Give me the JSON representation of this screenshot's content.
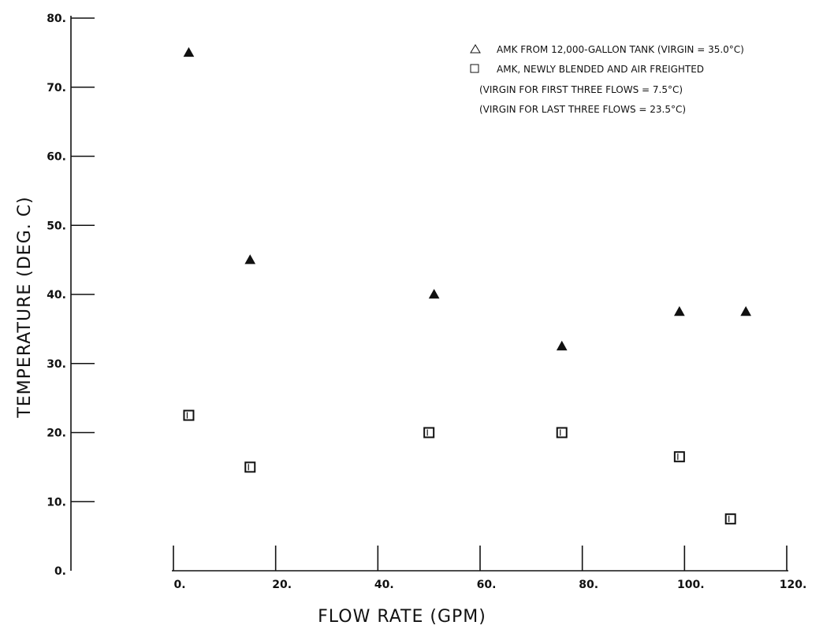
{
  "chart_data": {
    "type": "scatter",
    "title": "",
    "xlabel": "FLOW RATE (GPM)",
    "ylabel": "TEMPERATURE (DEG. C)",
    "xlim": [
      0,
      120
    ],
    "ylim": [
      0,
      80
    ],
    "x_ticks": [
      0,
      20,
      40,
      60,
      80,
      100,
      120
    ],
    "x_tick_labels": [
      "0.",
      "20.",
      "40.",
      "60.",
      "80.",
      "100.",
      "120."
    ],
    "y_ticks": [
      0,
      10,
      20,
      30,
      40,
      50,
      60,
      70,
      80
    ],
    "y_tick_labels": [
      "0.",
      "10.",
      "20.",
      "30.",
      "40.",
      "50.",
      "60.",
      "70.",
      "80."
    ],
    "grid": false,
    "legend_position": "top-right",
    "series": [
      {
        "name": "AMK FROM 12,000-GALLON TANK (VIRGIN = 35.0°C)",
        "marker": "triangle",
        "color": "#111111",
        "x": [
          3,
          15,
          51,
          76,
          99,
          112
        ],
        "y": [
          75,
          45,
          40,
          32.5,
          37.5,
          37.5
        ]
      },
      {
        "name": "AMK, NEWLY BLENDED AND AIR FREIGHTED",
        "marker": "square",
        "color": "#111111",
        "x": [
          3,
          15,
          50,
          76,
          99,
          109
        ],
        "y": [
          22.5,
          15,
          20,
          20,
          16.5,
          7.5
        ]
      }
    ],
    "legend_notes": [
      "(VIRGIN FOR FIRST THREE FLOWS = 7.5°C)",
      "(VIRGIN FOR LAST THREE FLOWS = 23.5°C)"
    ]
  }
}
